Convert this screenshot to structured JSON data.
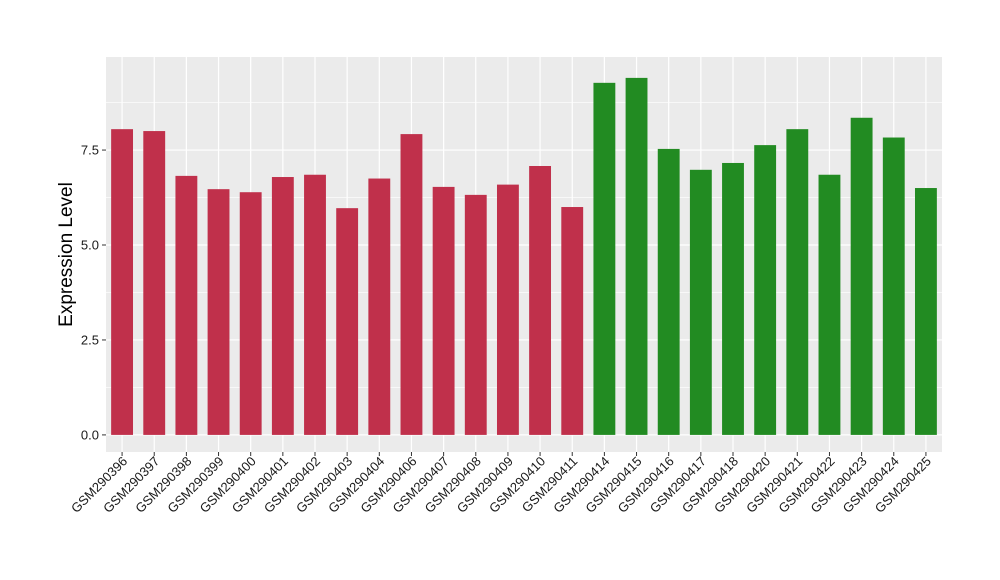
{
  "chart_data": {
    "type": "bar",
    "title": "",
    "xlabel": "",
    "ylabel": "Expression Level",
    "ylim": [
      -0.45,
      9.95
    ],
    "yticks": [
      0.0,
      2.5,
      5.0,
      7.5
    ],
    "ytick_labels": [
      "0.0",
      "2.5",
      "5.0",
      "7.5"
    ],
    "grid": true,
    "legend": "none",
    "panel_background": "#ebebeb",
    "grid_color": "#ffffff",
    "categories": [
      "GSM290396",
      "GSM290397",
      "GSM290398",
      "GSM290399",
      "GSM290400",
      "GSM290401",
      "GSM290402",
      "GSM290403",
      "GSM290404",
      "GSM290406",
      "GSM290407",
      "GSM290408",
      "GSM290409",
      "GSM290410",
      "GSM290411",
      "GSM290414",
      "GSM290415",
      "GSM290416",
      "GSM290417",
      "GSM290418",
      "GSM290420",
      "GSM290421",
      "GSM290422",
      "GSM290423",
      "GSM290424",
      "GSM290425"
    ],
    "values": [
      8.05,
      8.0,
      6.82,
      6.47,
      6.39,
      6.79,
      6.85,
      5.97,
      6.75,
      7.92,
      6.53,
      6.32,
      6.59,
      7.08,
      6.0,
      9.27,
      9.4,
      7.53,
      6.98,
      7.16,
      7.63,
      8.05,
      6.85,
      8.35,
      7.83,
      6.5
    ],
    "bar_colors": [
      "#c0304b",
      "#c0304b",
      "#c0304b",
      "#c0304b",
      "#c0304b",
      "#c0304b",
      "#c0304b",
      "#c0304b",
      "#c0304b",
      "#c0304b",
      "#c0304b",
      "#c0304b",
      "#c0304b",
      "#c0304b",
      "#c0304b",
      "#228b22",
      "#228b22",
      "#228b22",
      "#228b22",
      "#228b22",
      "#228b22",
      "#228b22",
      "#228b22",
      "#228b22",
      "#228b22",
      "#228b22"
    ]
  }
}
